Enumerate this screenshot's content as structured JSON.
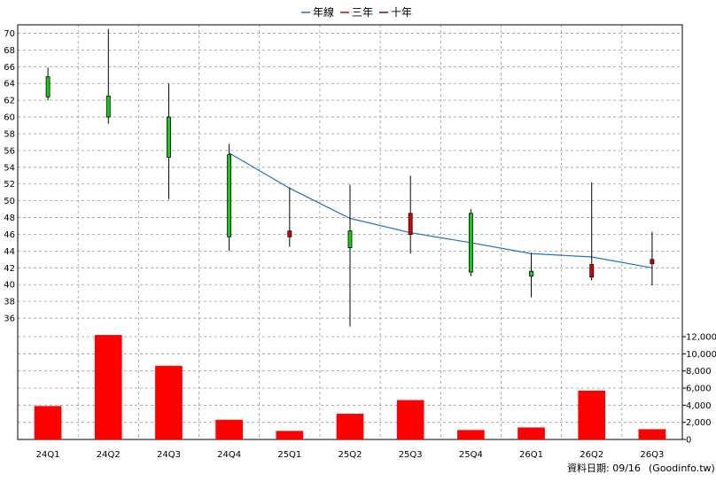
{
  "legend": [
    {
      "label": "年線",
      "color": "#1f6fd0"
    },
    {
      "label": "三年",
      "color": "#e00000"
    },
    {
      "label": "十年",
      "color": "#800040"
    }
  ],
  "footer": {
    "date_label": "資料日期: 09/16",
    "source": "(Goodinfo.tw)"
  },
  "colors": {
    "up": "#e00000",
    "down": "#11d011",
    "volume": "#ff0000",
    "line": "#1f6fd0",
    "grid": "#999999"
  },
  "chart_data": {
    "type": "candlestick+bar",
    "categories": [
      "24Q1",
      "24Q2",
      "24Q3",
      "24Q4",
      "25Q1",
      "25Q2",
      "25Q3",
      "25Q4",
      "26Q1",
      "26Q2",
      "26Q3"
    ],
    "price": {
      "ylim": [
        34,
        71
      ],
      "yticks": [
        36,
        38,
        40,
        42,
        44,
        46,
        48,
        50,
        52,
        54,
        56,
        58,
        60,
        62,
        64,
        66,
        68,
        70
      ],
      "candles": [
        {
          "open": 64.8,
          "close": 62.4,
          "high": 65.9,
          "low": 62.0
        },
        {
          "open": 62.5,
          "close": 60.0,
          "high": 70.5,
          "low": 59.2
        },
        {
          "open": 60.0,
          "close": 55.2,
          "high": 64.0,
          "low": 50.2
        },
        {
          "open": 55.5,
          "close": 45.7,
          "high": 56.8,
          "low": 44.0
        },
        {
          "open": 45.7,
          "close": 46.4,
          "high": 51.6,
          "low": 44.5
        },
        {
          "open": 46.4,
          "close": 44.4,
          "high": 51.9,
          "low": 35.0
        },
        {
          "open": 46.0,
          "close": 48.5,
          "high": 53.0,
          "low": 43.7
        },
        {
          "open": 48.5,
          "close": 41.5,
          "high": 49.0,
          "low": 41.0
        },
        {
          "open": 41.6,
          "close": 41.0,
          "high": 43.8,
          "low": 38.5
        },
        {
          "open": 40.9,
          "close": 42.4,
          "high": 52.2,
          "low": 40.5
        },
        {
          "open": 42.5,
          "close": 43.0,
          "high": 46.3,
          "low": 39.9
        }
      ],
      "year_line": [
        null,
        null,
        null,
        55.7,
        51.5,
        47.9,
        46.2,
        45.0,
        43.7,
        43.3,
        42.0
      ]
    },
    "volume": {
      "ylim": [
        0,
        12000
      ],
      "yticks": [
        0,
        2000,
        4000,
        6000,
        8000,
        10000,
        12000
      ],
      "yticklabels": [
        "0",
        "2,000",
        "4,000",
        "6,000",
        "8,000",
        "10,000",
        "12,000"
      ],
      "values": [
        3900,
        12200,
        8600,
        2300,
        1000,
        3000,
        4600,
        1100,
        1400,
        5700,
        1200
      ]
    }
  }
}
